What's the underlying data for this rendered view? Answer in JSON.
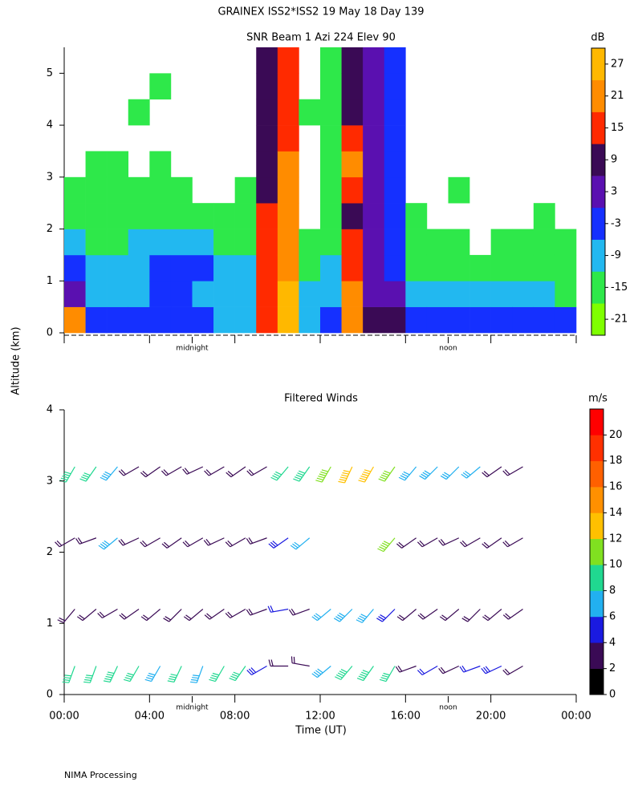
{
  "title": "GRAINEX ISS2*ISS2  19 May 18 Day 139",
  "ylabel": "Altitude (km)",
  "footer": "NIMA Processing",
  "chart_data": [
    {
      "type": "heatmap",
      "title": "SNR Beam 1 Azi 224 Elev 90",
      "xbins": [
        0,
        1,
        2,
        3,
        4,
        5,
        6,
        7,
        8,
        9,
        10,
        11,
        12,
        13,
        14,
        15,
        16,
        17,
        18,
        19,
        20,
        21,
        22,
        23,
        24
      ],
      "ybins": [
        0,
        0.5,
        1,
        1.5,
        2,
        2.5,
        3,
        3.5,
        4,
        4.5,
        5,
        5.5
      ],
      "values": [
        [
          18,
          5,
          -3,
          -9,
          -15,
          -18,
          null,
          null,
          null,
          null,
          null
        ],
        [
          -3,
          -9,
          -12,
          -15,
          -15,
          -18,
          -18,
          null,
          null,
          null,
          null
        ],
        [
          -3,
          -9,
          -12,
          -15,
          -18,
          -18,
          -18,
          null,
          null,
          null,
          null
        ],
        [
          -6,
          -9,
          -9,
          -12,
          -15,
          -18,
          null,
          null,
          -18,
          null,
          null
        ],
        [
          -6,
          -3,
          -3,
          -9,
          -15,
          -18,
          -18,
          null,
          null,
          -18,
          null
        ],
        [
          -6,
          -6,
          -3,
          -9,
          -15,
          -18,
          null,
          null,
          null,
          null,
          null
        ],
        [
          -6,
          -9,
          -6,
          -12,
          -18,
          null,
          null,
          null,
          null,
          null,
          null
        ],
        [
          -9,
          -9,
          -12,
          -15,
          -18,
          null,
          null,
          null,
          null,
          null,
          null
        ],
        [
          -9,
          -9,
          -12,
          -15,
          -18,
          -18,
          null,
          null,
          null,
          null,
          null
        ],
        [
          12,
          12,
          12,
          12,
          12,
          10,
          10,
          10,
          10,
          10,
          10
        ],
        [
          24,
          24,
          20,
          20,
          18,
          18,
          18,
          15,
          15,
          15,
          15
        ],
        [
          -9,
          -12,
          -15,
          -18,
          null,
          null,
          null,
          null,
          -18,
          null,
          null
        ],
        [
          -6,
          -9,
          -12,
          -15,
          -15,
          -18,
          -18,
          -18,
          -18,
          -18,
          -18
        ],
        [
          20,
          18,
          15,
          12,
          10,
          12,
          20,
          12,
          10,
          8,
          8
        ],
        [
          6,
          4,
          4,
          3,
          3,
          3,
          3,
          3,
          2,
          2,
          2
        ],
        [
          6,
          0,
          -3,
          -6,
          -6,
          -6,
          -6,
          -6,
          -3,
          -3,
          -3
        ],
        [
          -6,
          -12,
          -15,
          -18,
          -18,
          null,
          null,
          null,
          null,
          null,
          null
        ],
        [
          -6,
          -12,
          -18,
          -18,
          null,
          null,
          null,
          null,
          null,
          null,
          null
        ],
        [
          -3,
          -9,
          -15,
          -18,
          null,
          -18,
          null,
          null,
          null,
          null,
          null
        ],
        [
          -6,
          -12,
          -18,
          null,
          null,
          null,
          null,
          null,
          null,
          null,
          null
        ],
        [
          -3,
          -12,
          -18,
          -18,
          null,
          null,
          null,
          null,
          null,
          null,
          null
        ],
        [
          -3,
          -12,
          -18,
          -18,
          null,
          null,
          null,
          null,
          null,
          null,
          null
        ],
        [
          -6,
          -12,
          -18,
          -18,
          -18,
          null,
          null,
          null,
          null,
          null,
          null
        ],
        [
          -6,
          -15,
          -18,
          -18,
          null,
          null,
          null,
          null,
          null,
          null,
          null
        ]
      ],
      "ylim": [
        0,
        5.5
      ],
      "yticks": [
        0,
        1,
        2,
        3,
        4,
        5
      ],
      "colorbar": {
        "label": "dB",
        "lim": [
          -24,
          30
        ],
        "ticks": [
          -21,
          -15,
          -9,
          -3,
          3,
          9,
          15,
          21,
          27
        ],
        "colors": [
          "#7fff00",
          "#2ee84a",
          "#22b8f0",
          "#1530ff",
          "#5a10b0",
          "#3a0a55",
          "#ff2a00",
          "#ff8c00",
          "#ffb800"
        ]
      }
    },
    {
      "type": "barbs",
      "title": "Filtered Winds",
      "x": [
        0.5,
        1.5,
        2.5,
        3.5,
        4.5,
        5.5,
        6.5,
        7.5,
        8.5,
        9.5,
        10.5,
        11.5,
        12.5,
        13.5,
        14.5,
        15.5,
        16.5,
        17.5,
        18.5,
        19.5,
        20.5,
        21.5,
        0.5,
        1.5,
        2.5,
        3.5,
        4.5,
        5.5,
        6.5,
        7.5,
        8.5,
        9.5,
        10.5,
        11.5,
        12.5,
        13.5,
        14.5,
        15.5,
        16.5,
        17.5,
        18.5,
        19.5,
        20.5,
        21.5,
        0.5,
        1.5,
        2.5,
        3.5,
        4.5,
        5.5,
        6.5,
        7.5,
        8.5,
        9.5,
        10.5,
        11.5,
        15.5,
        16.5,
        17.5,
        18.5,
        19.5,
        20.5,
        21.5,
        0.5,
        1.5,
        2.5,
        3.5,
        4.5,
        5.5,
        6.5,
        7.5,
        8.5,
        9.5,
        10.5,
        11.5,
        12.5,
        13.5,
        14.5,
        15.5,
        16.5,
        17.5,
        18.5,
        19.5,
        20.5,
        21.5
      ],
      "y": [
        0.4,
        0.4,
        0.4,
        0.4,
        0.4,
        0.4,
        0.4,
        0.4,
        0.4,
        0.4,
        0.4,
        0.4,
        0.4,
        0.4,
        0.4,
        0.4,
        0.4,
        0.4,
        0.4,
        0.4,
        0.4,
        0.4,
        1.2,
        1.2,
        1.2,
        1.2,
        1.2,
        1.2,
        1.2,
        1.2,
        1.2,
        1.2,
        1.2,
        1.2,
        1.2,
        1.2,
        1.2,
        1.2,
        1.2,
        1.2,
        1.2,
        1.2,
        1.2,
        1.2,
        2.2,
        2.2,
        2.2,
        2.2,
        2.2,
        2.2,
        2.2,
        2.2,
        2.2,
        2.2,
        2.2,
        2.2,
        2.2,
        2.2,
        2.2,
        2.2,
        2.2,
        2.2,
        2.2,
        3.2,
        3.2,
        3.2,
        3.2,
        3.2,
        3.2,
        3.2,
        3.2,
        3.2,
        3.2,
        3.2,
        3.2,
        3.2,
        3.2,
        3.2,
        3.2,
        3.2,
        3.2,
        3.2,
        3.2,
        3.2,
        3.2
      ],
      "speed": [
        8,
        8,
        9,
        8,
        7,
        8,
        7,
        8,
        8,
        5,
        3,
        3,
        7,
        9,
        9,
        8,
        3,
        4,
        3,
        4,
        5,
        3,
        3,
        3,
        3,
        3,
        3,
        3,
        3,
        3,
        3,
        3,
        4,
        3,
        6,
        7,
        7,
        5,
        3,
        3,
        3,
        3,
        3,
        3,
        3,
        3,
        7,
        3,
        3,
        3,
        3,
        3,
        3,
        3,
        5,
        6,
        10,
        3,
        3,
        3,
        3,
        3,
        3,
        9,
        8,
        7,
        3,
        3,
        3,
        3,
        3,
        3,
        3,
        8,
        9,
        11,
        12,
        12,
        10,
        7,
        7,
        6,
        6,
        3,
        3
      ],
      "direction": [
        200,
        200,
        205,
        210,
        210,
        205,
        200,
        210,
        215,
        240,
        270,
        280,
        230,
        220,
        215,
        210,
        250,
        240,
        245,
        250,
        245,
        240,
        220,
        230,
        240,
        235,
        230,
        225,
        230,
        235,
        240,
        250,
        260,
        250,
        230,
        225,
        220,
        225,
        230,
        235,
        230,
        225,
        230,
        235,
        240,
        250,
        230,
        245,
        240,
        235,
        240,
        245,
        240,
        250,
        235,
        230,
        220,
        235,
        240,
        245,
        240,
        235,
        240,
        210,
        215,
        220,
        240,
        235,
        240,
        245,
        240,
        235,
        240,
        220,
        215,
        210,
        205,
        210,
        215,
        220,
        225,
        225,
        230,
        235,
        240
      ],
      "xlim": [
        0,
        24
      ],
      "xticks": [
        {
          "value": 0,
          "label": "00:00"
        },
        {
          "value": 4,
          "label": "04:00"
        },
        {
          "value": 8,
          "label": "08:00"
        },
        {
          "value": 12,
          "label": "12:00"
        },
        {
          "value": 16,
          "label": "16:00"
        },
        {
          "value": 20,
          "label": "20:00"
        },
        {
          "value": 24,
          "label": "00:00"
        }
      ],
      "xlabel": "Time (UT)",
      "local_time_markers": [
        {
          "value": 6,
          "label": "midnight"
        },
        {
          "value": 18,
          "label": "noon"
        }
      ],
      "ylim": [
        0,
        4
      ],
      "yticks": [
        0,
        1,
        2,
        3,
        4
      ],
      "colorbar": {
        "label": "m/s",
        "lim": [
          0,
          22
        ],
        "ticks": [
          0,
          2,
          4,
          6,
          8,
          10,
          12,
          14,
          16,
          18,
          20
        ],
        "colors": [
          "#000000",
          "#3a0a55",
          "#1a1ae0",
          "#22b0f0",
          "#20d890",
          "#80e020",
          "#ffc000",
          "#ff9000",
          "#ff6000",
          "#ff3000",
          "#ff0000"
        ]
      }
    }
  ]
}
